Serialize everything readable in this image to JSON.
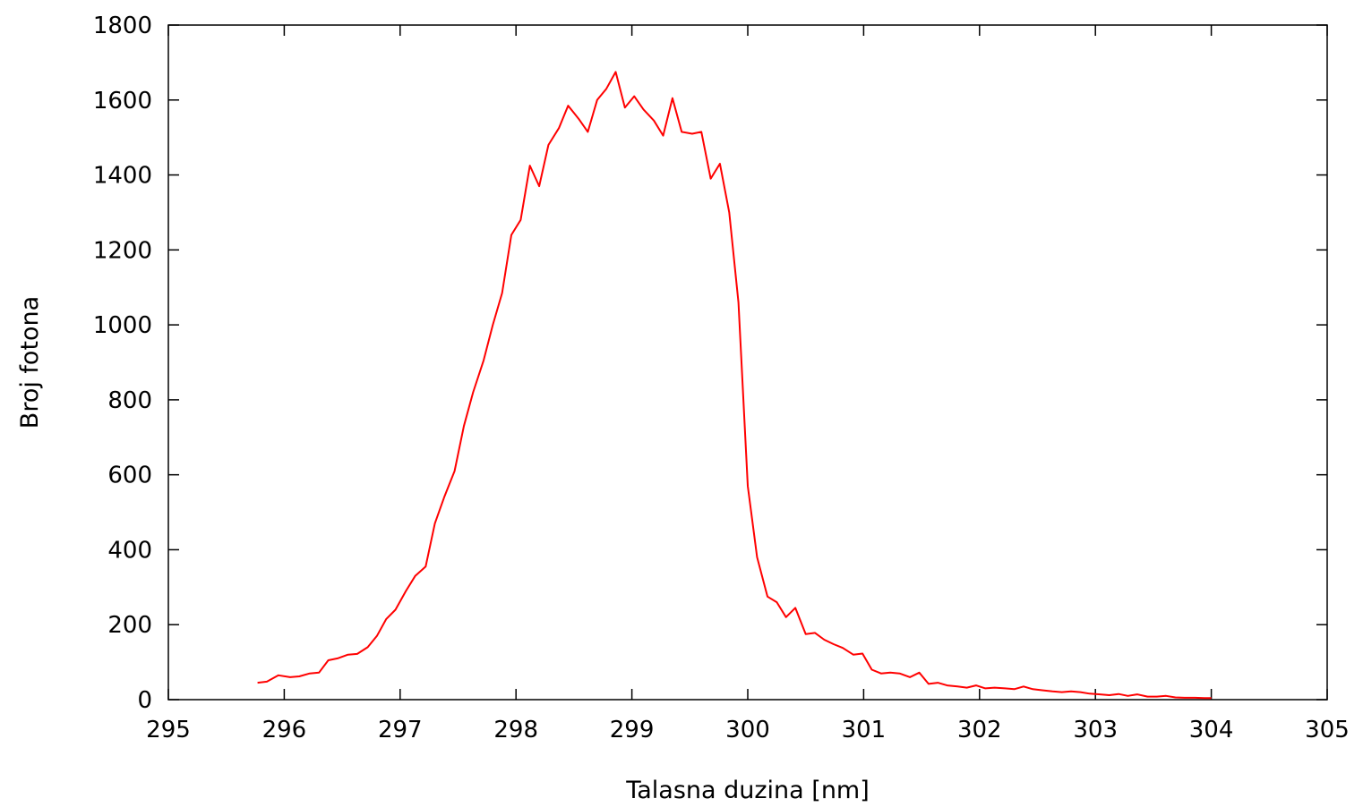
{
  "chart_data": {
    "type": "line",
    "title": "",
    "xlabel": "Talasna duzina [nm]",
    "ylabel": "Broj fotona",
    "xlim": [
      295,
      305
    ],
    "ylim": [
      0,
      1800
    ],
    "xticks": [
      295,
      296,
      297,
      298,
      299,
      300,
      301,
      302,
      303,
      304,
      305
    ],
    "yticks": [
      0,
      200,
      400,
      600,
      800,
      1000,
      1200,
      1400,
      1600,
      1800
    ],
    "grid": false,
    "legend": "none",
    "series": [
      {
        "color": "#ff0000",
        "points": [
          [
            295.77,
            45
          ],
          [
            295.85,
            48
          ],
          [
            295.95,
            65
          ],
          [
            296.05,
            60
          ],
          [
            296.13,
            62
          ],
          [
            296.22,
            70
          ],
          [
            296.3,
            72
          ],
          [
            296.38,
            105
          ],
          [
            296.46,
            110
          ],
          [
            296.55,
            120
          ],
          [
            296.63,
            122
          ],
          [
            296.72,
            140
          ],
          [
            296.8,
            170
          ],
          [
            296.88,
            215
          ],
          [
            296.96,
            240
          ],
          [
            297.05,
            290
          ],
          [
            297.13,
            330
          ],
          [
            297.22,
            355
          ],
          [
            297.3,
            470
          ],
          [
            297.38,
            540
          ],
          [
            297.47,
            610
          ],
          [
            297.55,
            730
          ],
          [
            297.63,
            820
          ],
          [
            297.72,
            905
          ],
          [
            297.8,
            1000
          ],
          [
            297.88,
            1085
          ],
          [
            297.96,
            1240
          ],
          [
            298.04,
            1280
          ],
          [
            298.12,
            1425
          ],
          [
            298.2,
            1370
          ],
          [
            298.28,
            1480
          ],
          [
            298.37,
            1525
          ],
          [
            298.45,
            1585
          ],
          [
            298.54,
            1550
          ],
          [
            298.62,
            1515
          ],
          [
            298.7,
            1600
          ],
          [
            298.78,
            1630
          ],
          [
            298.86,
            1675
          ],
          [
            298.94,
            1580
          ],
          [
            299.02,
            1610
          ],
          [
            299.1,
            1575
          ],
          [
            299.19,
            1545
          ],
          [
            299.27,
            1505
          ],
          [
            299.35,
            1605
          ],
          [
            299.43,
            1515
          ],
          [
            299.52,
            1510
          ],
          [
            299.6,
            1515
          ],
          [
            299.68,
            1390
          ],
          [
            299.76,
            1430
          ],
          [
            299.84,
            1300
          ],
          [
            299.92,
            1060
          ],
          [
            300.0,
            570
          ],
          [
            300.08,
            380
          ],
          [
            300.17,
            275
          ],
          [
            300.25,
            260
          ],
          [
            300.33,
            220
          ],
          [
            300.41,
            245
          ],
          [
            300.5,
            175
          ],
          [
            300.58,
            178
          ],
          [
            300.66,
            160
          ],
          [
            300.74,
            148
          ],
          [
            300.82,
            138
          ],
          [
            300.91,
            120
          ],
          [
            300.99,
            123
          ],
          [
            301.07,
            80
          ],
          [
            301.15,
            70
          ],
          [
            301.23,
            72
          ],
          [
            301.31,
            70
          ],
          [
            301.4,
            60
          ],
          [
            301.48,
            72
          ],
          [
            301.56,
            42
          ],
          [
            301.64,
            45
          ],
          [
            301.72,
            38
          ],
          [
            301.81,
            35
          ],
          [
            301.89,
            32
          ],
          [
            301.97,
            38
          ],
          [
            302.05,
            30
          ],
          [
            302.13,
            32
          ],
          [
            302.22,
            30
          ],
          [
            302.3,
            28
          ],
          [
            302.38,
            35
          ],
          [
            302.46,
            28
          ],
          [
            302.54,
            25
          ],
          [
            302.63,
            22
          ],
          [
            302.71,
            20
          ],
          [
            302.79,
            22
          ],
          [
            302.87,
            20
          ],
          [
            302.95,
            16
          ],
          [
            303.04,
            14
          ],
          [
            303.12,
            12
          ],
          [
            303.2,
            15
          ],
          [
            303.28,
            10
          ],
          [
            303.36,
            14
          ],
          [
            303.45,
            8
          ],
          [
            303.53,
            8
          ],
          [
            303.61,
            10
          ],
          [
            303.69,
            6
          ],
          [
            303.77,
            5
          ],
          [
            303.86,
            5
          ],
          [
            303.94,
            4
          ],
          [
            304.0,
            4
          ]
        ]
      }
    ]
  }
}
